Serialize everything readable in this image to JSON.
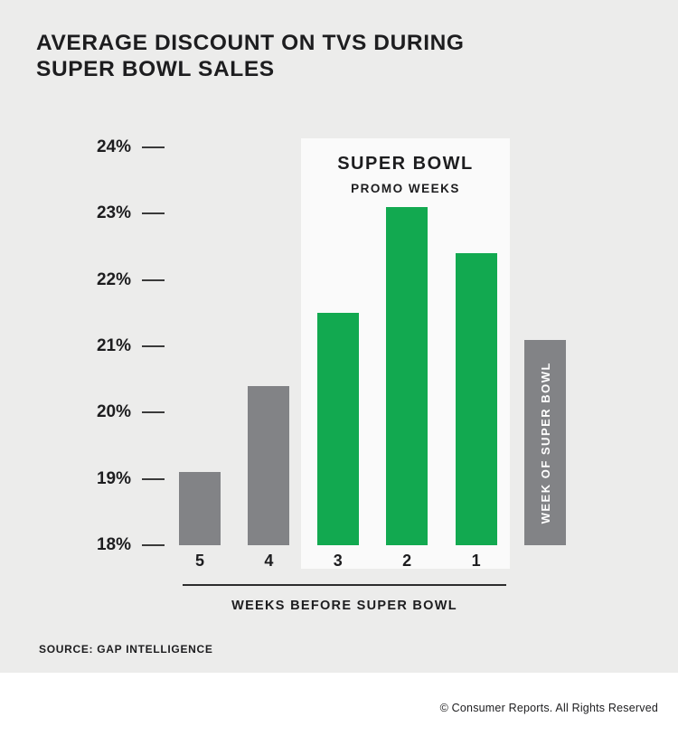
{
  "page": {
    "title_line1": "AVERAGE DISCOUNT ON TVS DURING",
    "title_line2": "SUPER BOWL SALES",
    "source": "SOURCE: GAP INTELLIGENCE",
    "footer": "© Consumer Reports. All Rights Reserved"
  },
  "colors": {
    "background": "#ececeb",
    "promo_box": "#fafafa",
    "bar_green": "#12a950",
    "bar_gray": "#828386",
    "text_dark": "#1d1d1f",
    "footer_bg": "#ffffff"
  },
  "chart_data": {
    "type": "bar",
    "title": "AVERAGE DISCOUNT ON TVS DURING SUPER BOWL SALES",
    "xlabel": "WEEKS BEFORE SUPER BOWL",
    "ylabel": "",
    "ylim": [
      18,
      24
    ],
    "y_ticks": [
      "24%",
      "23%",
      "22%",
      "21%",
      "20%",
      "19%",
      "18%"
    ],
    "categories": [
      "5",
      "4",
      "3",
      "2",
      "1",
      "WEEK OF SUPER BOWL"
    ],
    "values": [
      19.1,
      20.4,
      21.5,
      23.1,
      22.4,
      21.1
    ],
    "bar_colors": [
      "gray",
      "gray",
      "green",
      "green",
      "green",
      "gray"
    ],
    "label_position": [
      "below",
      "below",
      "below",
      "below",
      "below",
      "inside"
    ],
    "promo_label_line1": "SUPER BOWL",
    "promo_label_line2": "PROMO WEEKS",
    "promo_weeks": [
      "3",
      "2",
      "1"
    ],
    "grid": false,
    "legend": false
  }
}
